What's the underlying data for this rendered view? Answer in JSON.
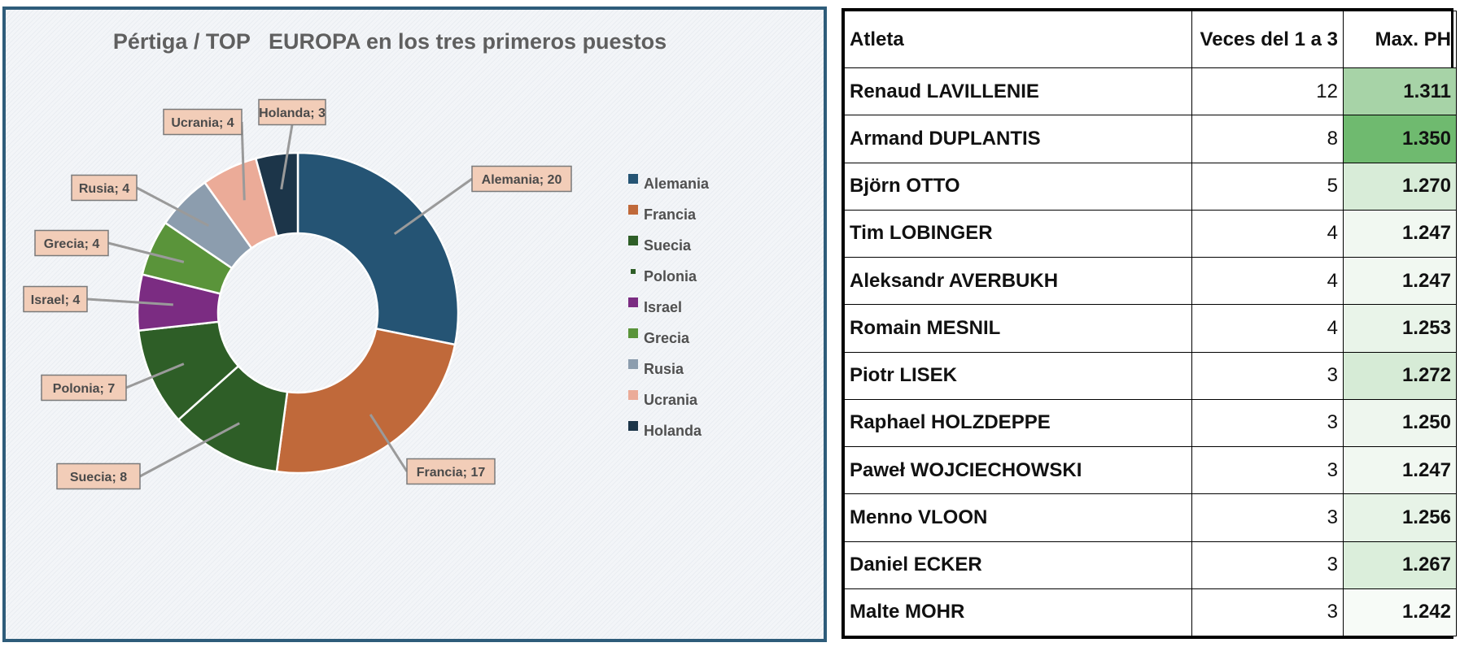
{
  "chart_data": {
    "type": "pie",
    "variant": "donut",
    "title": "Pértiga / TOP   EUROPA en los tres primeros puestos",
    "categories": [
      "Alemania",
      "Francia",
      "Suecia",
      "Polonia",
      "Israel",
      "Grecia",
      "Rusia",
      "Ucrania",
      "Holanda"
    ],
    "values": [
      20,
      17,
      8,
      7,
      4,
      4,
      4,
      4,
      3
    ],
    "colors": [
      "#255474",
      "#c0693a",
      "#2e5e27",
      "#2e5e27",
      "#7b2c82",
      "#5a943a",
      "#8c9dae",
      "#ebab98",
      "#1c3549"
    ],
    "data_labels": [
      "Alemania; 20",
      "Francia; 17",
      "Suecia; 8",
      "Polonia; 7",
      "Israel; 4",
      "Grecia; 4",
      "Rusia; 4",
      "Ucrania; 4",
      "Holanda; 3"
    ],
    "legend": {
      "placement": "right",
      "entries": [
        "Alemania",
        "Francia",
        "Suecia",
        "Polonia",
        "Israel",
        "Grecia",
        "Rusia",
        "Ucrania",
        "Holanda"
      ],
      "colors": [
        "#255474",
        "#c0693a",
        "#2e5e27",
        "#2e5e27",
        "#7b2c82",
        "#5a943a",
        "#8c9dae",
        "#ebab98",
        "#1c3549"
      ]
    },
    "label_style": {
      "fill": "#f2cdb8",
      "border": "#7a7a7a",
      "text": "#4a4a4a"
    }
  },
  "table": {
    "headers": [
      "Atleta",
      "Veces del 1 a 3",
      "Max. PH"
    ],
    "rows": [
      {
        "athlete": "Renaud LAVILLENIE",
        "times": "12",
        "max_ph": "1.311",
        "shade": "#a7d3a7"
      },
      {
        "athlete": "Armand DUPLANTIS",
        "times": "8",
        "max_ph": "1.350",
        "shade": "#6fba6f"
      },
      {
        "athlete": "Björn OTTO",
        "times": "5",
        "max_ph": "1.270",
        "shade": "#d8ecd8"
      },
      {
        "athlete": "Tim LOBINGER",
        "times": "4",
        "max_ph": "1.247",
        "shade": "#f1f8f1"
      },
      {
        "athlete": "Aleksandr AVERBUKH",
        "times": "4",
        "max_ph": "1.247",
        "shade": "#f1f8f1"
      },
      {
        "athlete": "Romain MESNIL",
        "times": "4",
        "max_ph": "1.253",
        "shade": "#e9f4e9"
      },
      {
        "athlete": "Piotr LISEK",
        "times": "3",
        "max_ph": "1.272",
        "shade": "#d6ebd6"
      },
      {
        "athlete": "Raphael HOLZDEPPE",
        "times": "3",
        "max_ph": "1.250",
        "shade": "#eef6ee"
      },
      {
        "athlete": "Paweł WOJCIECHOWSKI",
        "times": "3",
        "max_ph": "1.247",
        "shade": "#f1f8f1"
      },
      {
        "athlete": "Menno VLOON",
        "times": "3",
        "max_ph": "1.256",
        "shade": "#e7f3e7"
      },
      {
        "athlete": "Daniel ECKER",
        "times": "3",
        "max_ph": "1.267",
        "shade": "#dbeedb"
      },
      {
        "athlete": "Malte MOHR",
        "times": "3",
        "max_ph": "1.242",
        "shade": "#f7fbf7"
      }
    ]
  }
}
